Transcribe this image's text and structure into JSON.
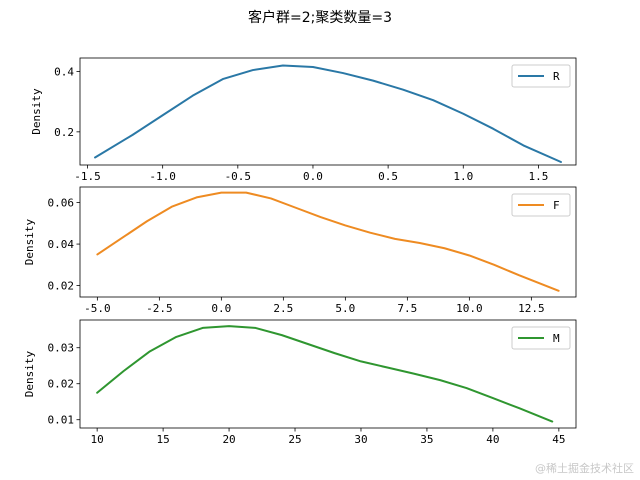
{
  "title": "客户群=2;聚类数量=3",
  "watermark": "@稀土掘金技术社区",
  "chart_data": [
    {
      "type": "line",
      "name": "R",
      "ylabel": "Density",
      "color": "#2a78a6",
      "xlim": [
        -1.55,
        1.75
      ],
      "ylim": [
        0.09,
        0.445
      ],
      "xticks": [
        -1.5,
        -1.0,
        -0.5,
        0.0,
        0.5,
        1.0,
        1.5
      ],
      "xtick_labels": [
        "-1.5",
        "-1.0",
        "-0.5",
        "0.0",
        "0.5",
        "1.0",
        "1.5"
      ],
      "yticks": [
        0.2,
        0.4
      ],
      "ytick_labels": [
        "0.2",
        "0.4"
      ],
      "legend": "R",
      "x": [
        -1.45,
        -1.2,
        -1.0,
        -0.8,
        -0.6,
        -0.4,
        -0.2,
        0.0,
        0.2,
        0.4,
        0.6,
        0.8,
        1.0,
        1.2,
        1.4,
        1.65
      ],
      "y": [
        0.115,
        0.19,
        0.255,
        0.32,
        0.375,
        0.405,
        0.42,
        0.415,
        0.395,
        0.37,
        0.34,
        0.305,
        0.26,
        0.21,
        0.155,
        0.1
      ]
    },
    {
      "type": "line",
      "name": "F",
      "ylabel": "Density",
      "color": "#ee8b22",
      "xlim": [
        -5.7,
        14.3
      ],
      "ylim": [
        0.0145,
        0.0675
      ],
      "xticks": [
        -5.0,
        -2.5,
        0.0,
        2.5,
        5.0,
        7.5,
        10.0,
        12.5
      ],
      "xtick_labels": [
        "-5.0",
        "-2.5",
        "0.0",
        "2.5",
        "5.0",
        "7.5",
        "10.0",
        "12.5"
      ],
      "yticks": [
        0.02,
        0.04,
        0.06
      ],
      "ytick_labels": [
        "0.02",
        "0.04",
        "0.06"
      ],
      "legend": "F",
      "x": [
        -5.0,
        -4.0,
        -3.0,
        -2.0,
        -1.0,
        0.0,
        1.0,
        2.0,
        3.0,
        4.0,
        5.0,
        6.0,
        7.0,
        8.0,
        9.0,
        10.0,
        11.0,
        12.0,
        13.6
      ],
      "y": [
        0.035,
        0.043,
        0.051,
        0.058,
        0.0625,
        0.0648,
        0.0648,
        0.062,
        0.0575,
        0.053,
        0.049,
        0.0455,
        0.0425,
        0.0405,
        0.038,
        0.0345,
        0.03,
        0.025,
        0.0175
      ]
    },
    {
      "type": "line",
      "name": "M",
      "ylabel": "Density",
      "color": "#2f9630",
      "xlim": [
        8.7,
        46.3
      ],
      "ylim": [
        0.0077,
        0.0377
      ],
      "xticks": [
        10,
        15,
        20,
        25,
        30,
        35,
        40,
        45
      ],
      "xtick_labels": [
        "10",
        "15",
        "20",
        "25",
        "30",
        "35",
        "40",
        "45"
      ],
      "yticks": [
        0.01,
        0.02,
        0.03
      ],
      "ytick_labels": [
        "0.01",
        "0.02",
        "0.03"
      ],
      "legend": "M",
      "x": [
        10,
        12,
        14,
        16,
        18,
        20,
        22,
        24,
        26,
        28,
        30,
        32,
        34,
        36,
        38,
        40,
        42,
        44.5
      ],
      "y": [
        0.0175,
        0.0235,
        0.029,
        0.033,
        0.0355,
        0.036,
        0.0355,
        0.0335,
        0.031,
        0.0285,
        0.0262,
        0.0245,
        0.0228,
        0.021,
        0.0188,
        0.016,
        0.0132,
        0.0095
      ]
    }
  ]
}
